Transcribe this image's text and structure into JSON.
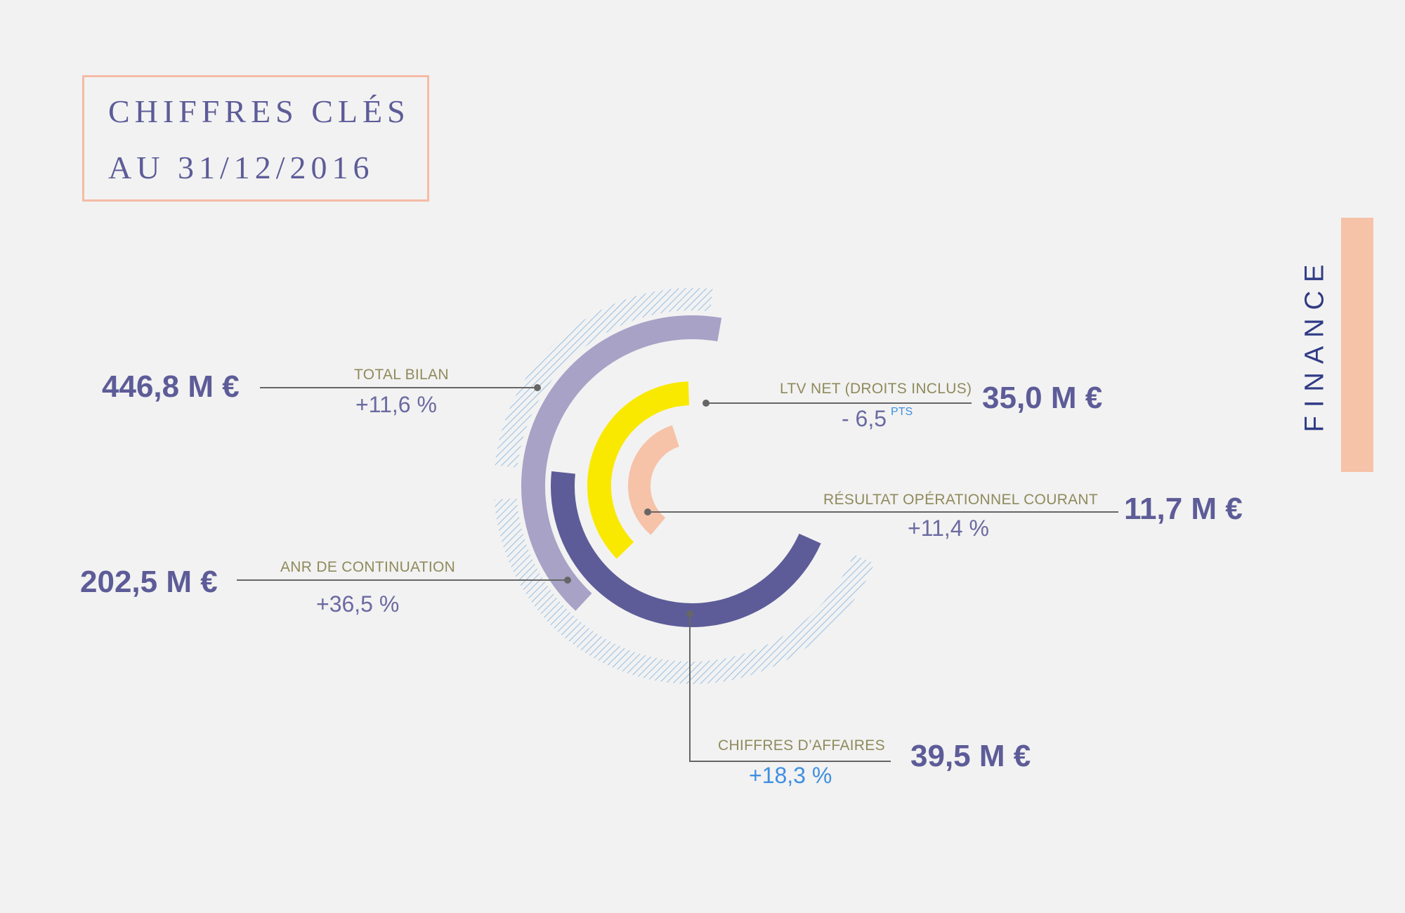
{
  "title": {
    "line1": "CHIFFRES CLÉS",
    "line2": "AU 31/12/2016"
  },
  "section_label": "FINANCE",
  "chart_data": {
    "type": "radial-bar",
    "title": "CHIFFRES CLÉS AU 31/12/2016",
    "series": [
      {
        "key": "total_bilan",
        "name": "TOTAL BILAN",
        "value": 446.8,
        "display_value": "446,8 M  €",
        "change": "+11,6  %",
        "color": "#a7a2c6"
      },
      {
        "key": "anr",
        "name": "ANR DE CONTINUATION",
        "value": 202.5,
        "display_value": "202,5 M  €",
        "change": "+36,5  %",
        "color": "#5d5c98"
      },
      {
        "key": "ca",
        "name": "CHIFFRES D’AFFAIRES",
        "value": 39.5,
        "display_value": "39,5 M €",
        "change": "+18,3 %",
        "color": "#5f5e9b"
      },
      {
        "key": "ltv",
        "name": "LTV NET (DROITS INCLUS)",
        "value": 35.0,
        "display_value": "35,0 M €",
        "change": "- 6,5",
        "change_unit": "PTS",
        "color": "#f9e900"
      },
      {
        "key": "roc",
        "name": "RÉSULTAT OPÉRATIONNEL COURANT",
        "value": 11.7,
        "display_value": "11,7 M  €",
        "change": "+11,4  %",
        "color": "#f6c2a8"
      }
    ],
    "colors": {
      "hatch": "#7fb2e0",
      "leader": "#666666",
      "category_text": "#8f8a5c",
      "value_text": "#5d5c98",
      "positive_blue": "#3f8fe0"
    }
  }
}
